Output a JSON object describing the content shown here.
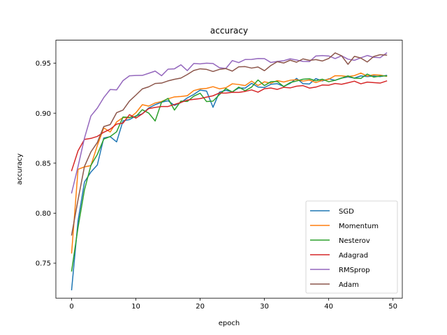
{
  "chart_data": {
    "type": "line",
    "title": "accuracy",
    "xlabel": "epoch",
    "ylabel": "accuracy",
    "xlim": [
      -2.45,
      51.45
    ],
    "ylim": [
      0.715,
      0.973
    ],
    "xticks": [
      0,
      10,
      20,
      30,
      40,
      50
    ],
    "yticks": [
      0.75,
      0.8,
      0.85,
      0.9,
      0.95
    ],
    "ytick_labels": [
      "0.75",
      "0.80",
      "0.85",
      "0.90",
      "0.95"
    ],
    "grid": false,
    "legend_position": "lower right",
    "x": [
      0,
      1,
      2,
      3,
      4,
      5,
      6,
      7,
      8,
      9,
      10,
      11,
      12,
      13,
      14,
      15,
      16,
      17,
      18,
      19,
      20,
      21,
      22,
      23,
      24,
      25,
      26,
      27,
      28,
      29,
      30,
      31,
      32,
      33,
      34,
      35,
      36,
      37,
      38,
      39,
      40,
      41,
      42,
      43,
      44,
      45,
      46,
      47,
      48,
      49
    ],
    "series": [
      {
        "name": "SGD",
        "color": "#1f77b4",
        "values": [
          0.7234,
          0.7925,
          0.8312,
          0.8411,
          0.8482,
          0.8752,
          0.8765,
          0.8713,
          0.8924,
          0.8936,
          0.8973,
          0.8994,
          0.9052,
          0.9085,
          0.911,
          0.9124,
          0.9078,
          0.9106,
          0.9153,
          0.9187,
          0.9231,
          0.9221,
          0.9059,
          0.921,
          0.9229,
          0.9213,
          0.9252,
          0.9251,
          0.9299,
          0.9261,
          0.9257,
          0.9289,
          0.9295,
          0.9268,
          0.9298,
          0.9348,
          0.9295,
          0.9292,
          0.9346,
          0.9322,
          0.9344,
          0.9329,
          0.9351,
          0.9362,
          0.9351,
          0.9373,
          0.9366,
          0.9372,
          0.9366,
          0.9378
        ]
      },
      {
        "name": "Momentum",
        "color": "#ff7f0e",
        "values": [
          0.7601,
          0.8439,
          0.8463,
          0.8476,
          0.8677,
          0.8853,
          0.8812,
          0.8912,
          0.8957,
          0.8952,
          0.9004,
          0.9085,
          0.9071,
          0.9102,
          0.9117,
          0.9144,
          0.9163,
          0.9167,
          0.9175,
          0.9226,
          0.9243,
          0.9248,
          0.9265,
          0.9244,
          0.9254,
          0.9294,
          0.9287,
          0.9276,
          0.9321,
          0.9277,
          0.9314,
          0.93,
          0.9326,
          0.9312,
          0.9329,
          0.9335,
          0.9321,
          0.9331,
          0.9306,
          0.9328,
          0.9339,
          0.9375,
          0.9374,
          0.9366,
          0.9376,
          0.9401,
          0.9371,
          0.9384,
          0.9381,
          0.9369
        ]
      },
      {
        "name": "Nesterov",
        "color": "#2ca02c",
        "values": [
          0.7421,
          0.7858,
          0.8234,
          0.8478,
          0.8587,
          0.8741,
          0.8766,
          0.8814,
          0.8962,
          0.8958,
          0.8966,
          0.9035,
          0.9001,
          0.8922,
          0.9111,
          0.9148,
          0.9031,
          0.9121,
          0.9117,
          0.917,
          0.92,
          0.9116,
          0.9121,
          0.9186,
          0.9246,
          0.9212,
          0.9261,
          0.9225,
          0.9261,
          0.9332,
          0.9276,
          0.9315,
          0.9317,
          0.9266,
          0.9306,
          0.9322,
          0.934,
          0.9344,
          0.9324,
          0.934,
          0.9315,
          0.9329,
          0.9351,
          0.9373,
          0.935,
          0.9348,
          0.9391,
          0.9361,
          0.9372,
          0.9373
        ]
      },
      {
        "name": "Adagrad",
        "color": "#d62728",
        "values": [
          0.8425,
          0.8624,
          0.8738,
          0.8748,
          0.8768,
          0.8809,
          0.884,
          0.8891,
          0.8901,
          0.8985,
          0.8951,
          0.8993,
          0.9046,
          0.9058,
          0.9067,
          0.9067,
          0.9087,
          0.9107,
          0.9131,
          0.9138,
          0.9146,
          0.9161,
          0.9174,
          0.9202,
          0.9201,
          0.9209,
          0.9208,
          0.9218,
          0.9233,
          0.921,
          0.9245,
          0.9252,
          0.9238,
          0.9259,
          0.9253,
          0.927,
          0.9276,
          0.9251,
          0.9261,
          0.9282,
          0.928,
          0.9297,
          0.9289,
          0.9304,
          0.932,
          0.9294,
          0.9311,
          0.9306,
          0.9301,
          0.9322
        ]
      },
      {
        "name": "RMSprop",
        "color": "#9467bd",
        "values": [
          0.8202,
          0.8468,
          0.8751,
          0.8972,
          0.9051,
          0.9156,
          0.9237,
          0.9233,
          0.9326,
          0.9374,
          0.9377,
          0.9378,
          0.9399,
          0.9421,
          0.9375,
          0.944,
          0.9444,
          0.9484,
          0.9426,
          0.9497,
          0.9493,
          0.95,
          0.9497,
          0.9455,
          0.9447,
          0.9526,
          0.9506,
          0.9537,
          0.9538,
          0.9547,
          0.9546,
          0.9507,
          0.9518,
          0.9525,
          0.9544,
          0.9532,
          0.9518,
          0.9516,
          0.9572,
          0.9576,
          0.9572,
          0.9546,
          0.9574,
          0.954,
          0.9529,
          0.9554,
          0.9577,
          0.9559,
          0.9555,
          0.9602
        ]
      },
      {
        "name": "Adam",
        "color": "#8c564b",
        "values": [
          0.7781,
          0.8135,
          0.8468,
          0.8613,
          0.8707,
          0.8866,
          0.8886,
          0.9005,
          0.9031,
          0.9121,
          0.9181,
          0.9243,
          0.9264,
          0.9297,
          0.9301,
          0.9323,
          0.9339,
          0.9351,
          0.9387,
          0.9427,
          0.9444,
          0.9438,
          0.9417,
          0.9438,
          0.9446,
          0.9421,
          0.9464,
          0.9466,
          0.9451,
          0.9462,
          0.9425,
          0.9477,
          0.9515,
          0.9502,
          0.953,
          0.951,
          0.9543,
          0.9528,
          0.9536,
          0.9522,
          0.9547,
          0.9603,
          0.9574,
          0.9489,
          0.9569,
          0.9551,
          0.9512,
          0.9567,
          0.9585,
          0.9581
        ]
      }
    ]
  }
}
